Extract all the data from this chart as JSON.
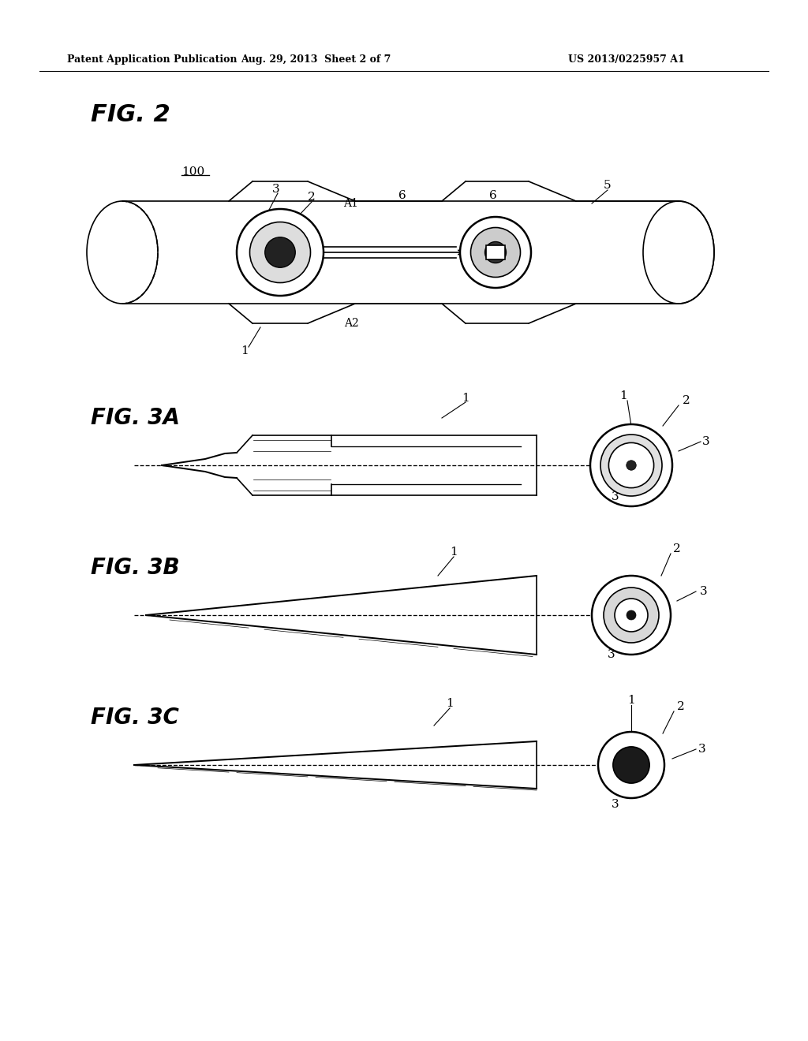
{
  "background_color": "#ffffff",
  "header_left": "Patent Application Publication",
  "header_center": "Aug. 29, 2013  Sheet 2 of 7",
  "header_right": "US 2013/0225957 A1",
  "fig2_label": "FIG. 2",
  "fig3a_label": "FIG. 3A",
  "fig3b_label": "FIG. 3B",
  "fig3c_label": "FIG. 3C",
  "line_color": "#000000",
  "lw": 1.2
}
